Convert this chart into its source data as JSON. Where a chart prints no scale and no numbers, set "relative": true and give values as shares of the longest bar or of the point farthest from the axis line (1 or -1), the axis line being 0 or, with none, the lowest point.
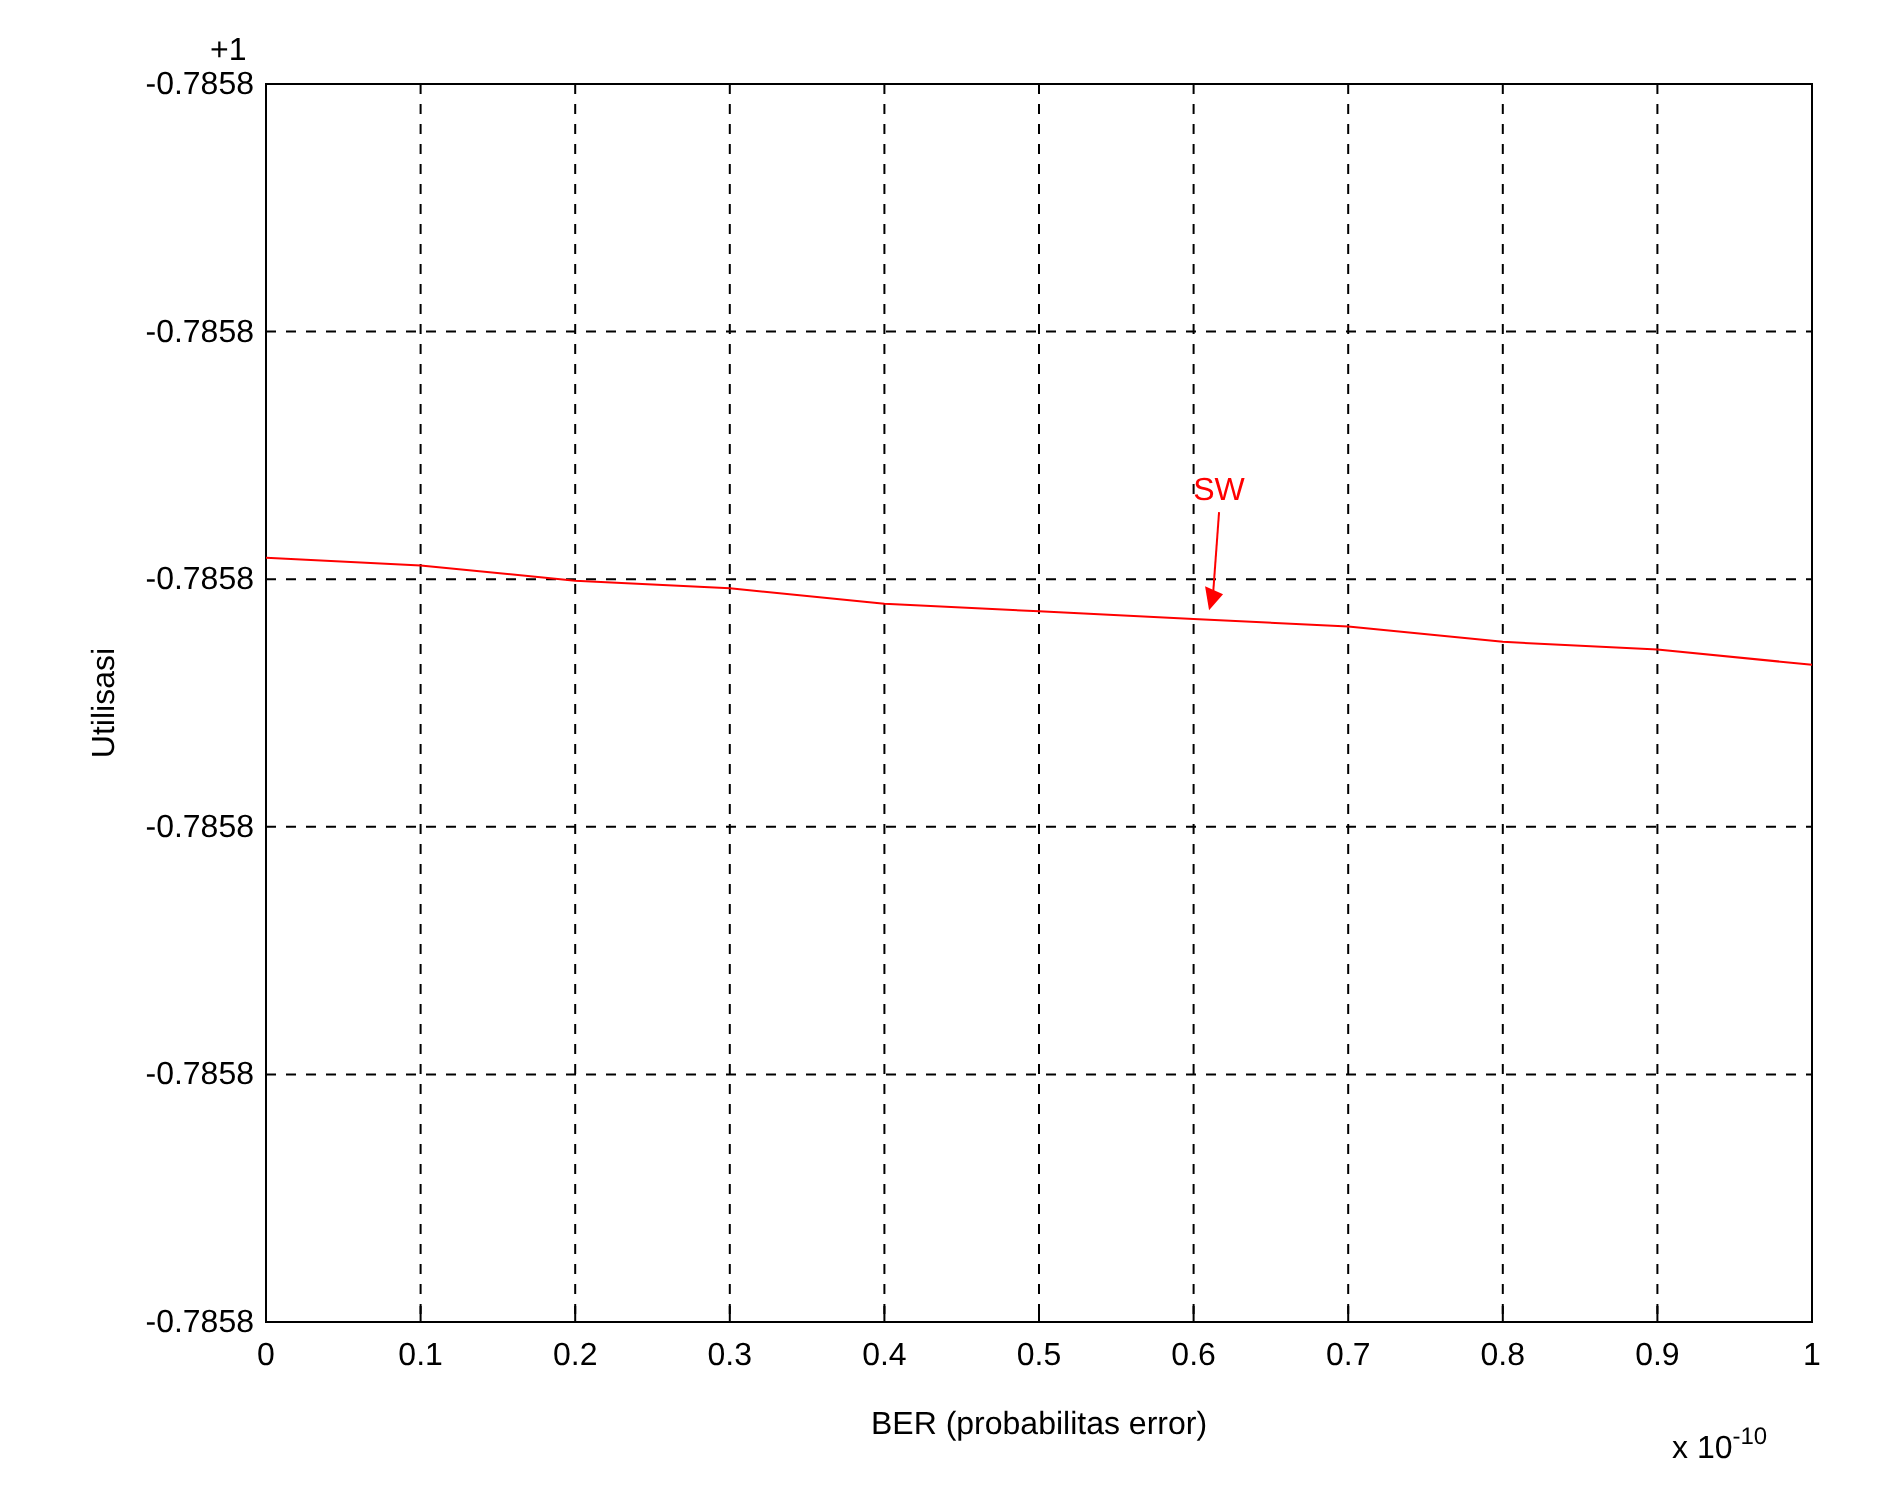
{
  "chart_data": {
    "type": "line",
    "xlabel": "BER (probabilitas error)",
    "ylabel": "Utilisasi",
    "relative": true,
    "x": [
      0,
      0.1,
      0.2,
      0.3,
      0.4,
      0.5,
      0.6,
      0.7,
      0.8,
      0.9,
      1
    ],
    "series": [
      {
        "color": "#ff0000",
        "values": [
          1,
          0.99,
          0.97,
          0.96,
          0.94,
          0.93,
          0.92,
          0.91,
          0.89,
          0.88,
          0.86
        ]
      }
    ],
    "xlim": [
      0,
      1
    ],
    "xticks": [
      0,
      0.1,
      0.2,
      0.3,
      0.4,
      0.5,
      0.6,
      0.7,
      0.8,
      0.9,
      1
    ],
    "grid": true,
    "marker": "none",
    "line_style": "solid",
    "annotations": [
      "SW",
      "+1",
      "-0.7858",
      "-0.7858",
      "-0.7858",
      "-0.7858",
      "-0.7858",
      "-0.7858",
      "x 10$^{-10}$"
    ]
  }
}
